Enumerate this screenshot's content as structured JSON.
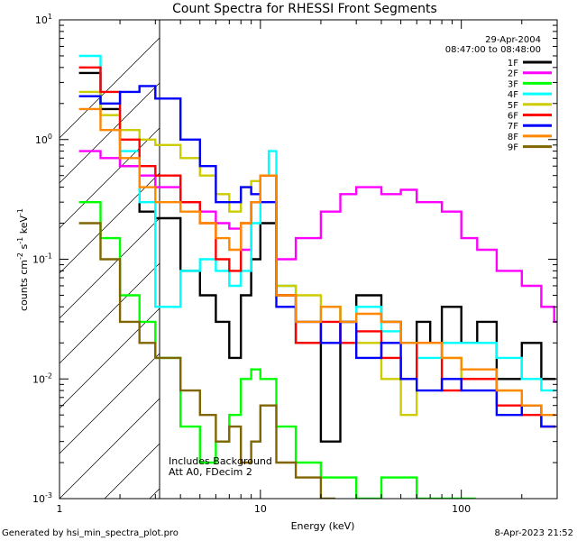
{
  "chart_data": {
    "type": "line",
    "title": "Count Spectra for RHESSI Front Segments",
    "xlabel": "Energy (keV)",
    "ylabel": "counts cm",
    "ylabel_unit_1": "-2",
    "ylabel_unit_2": " s",
    "ylabel_unit_3": "-1",
    "ylabel_unit_4": " keV",
    "ylabel_unit_5": "-1",
    "xscale": "log",
    "yscale": "log",
    "xlim": [
      1,
      300
    ],
    "ylim": [
      0.001,
      10
    ],
    "x_ticks": [
      {
        "v": 1,
        "label": "1"
      },
      {
        "v": 10,
        "label": "10"
      },
      {
        "v": 100,
        "label": "100"
      }
    ],
    "y_ticks": [
      {
        "v": 10,
        "base": "10",
        "exp": "1"
      },
      {
        "v": 1,
        "base": "10",
        "exp": "0"
      },
      {
        "v": 0.1,
        "base": "10",
        "exp": "-1"
      },
      {
        "v": 0.01,
        "base": "10",
        "exp": "-2"
      },
      {
        "v": 0.001,
        "base": "10",
        "exp": "-3"
      }
    ],
    "date": "29-Apr-2004",
    "time_range": "08:47:00 to 08:48:00",
    "annotation_line1": "Includes Background",
    "annotation_line2": "Att A0, FDecim 2",
    "hatched_region_max_energy": 3,
    "footer_left": "Generated by hsi_min_spectra_plot.pro",
    "footer_right": "8-Apr-2023 21:52",
    "series": [
      {
        "name": "1F",
        "color": "#000000",
        "x": [
          1.25,
          1.6,
          2.0,
          2.5,
          3,
          4,
          5,
          6,
          7,
          8,
          9,
          10,
          12,
          15,
          20,
          25,
          30,
          40,
          50,
          60,
          70,
          80,
          100,
          120,
          150,
          200,
          250
        ],
        "values": [
          3.6,
          1.8,
          0.6,
          0.25,
          0.22,
          0.08,
          0.05,
          0.03,
          0.015,
          0.05,
          0.1,
          0.2,
          0.05,
          0.02,
          0.003,
          0.03,
          0.05,
          0.03,
          0.02,
          0.03,
          0.02,
          0.04,
          0.02,
          0.03,
          0.01,
          0.02,
          0.01
        ]
      },
      {
        "name": "2F",
        "color": "#ff00ff",
        "x": [
          1.25,
          1.6,
          2.0,
          2.5,
          3,
          4,
          5,
          6,
          7,
          8,
          9,
          10,
          12,
          15,
          20,
          25,
          30,
          40,
          50,
          60,
          70,
          80,
          100,
          120,
          150,
          200,
          250,
          290
        ],
        "values": [
          0.8,
          0.7,
          0.6,
          0.5,
          0.4,
          0.3,
          0.25,
          0.2,
          0.18,
          0.12,
          0.3,
          0.5,
          0.1,
          0.15,
          0.25,
          0.35,
          0.4,
          0.35,
          0.38,
          0.3,
          0.3,
          0.25,
          0.15,
          0.12,
          0.08,
          0.06,
          0.04,
          0.03
        ]
      },
      {
        "name": "3F",
        "color": "#00ff00",
        "x": [
          1.25,
          1.6,
          2.0,
          2.5,
          3,
          4,
          5,
          6,
          7,
          8,
          9,
          10,
          12,
          15,
          20,
          30,
          40,
          60,
          100
        ],
        "values": [
          0.3,
          0.15,
          0.05,
          0.03,
          0.015,
          0.004,
          0.002,
          0.003,
          0.005,
          0.01,
          0.012,
          0.01,
          0.004,
          0.002,
          0.0015,
          0.001,
          0.0015,
          0.001,
          0.001
        ]
      },
      {
        "name": "4F",
        "color": "#00ffff",
        "x": [
          1.25,
          1.6,
          2.0,
          2.5,
          3,
          4,
          5,
          6,
          7,
          8,
          9,
          10,
          11,
          12,
          15,
          20,
          25,
          30,
          40,
          50,
          60,
          80,
          100,
          150,
          200,
          250
        ],
        "values": [
          5.0,
          2.0,
          0.8,
          0.3,
          0.04,
          0.08,
          0.1,
          0.08,
          0.06,
          0.08,
          0.2,
          0.5,
          0.8,
          0.06,
          0.02,
          0.04,
          0.03,
          0.04,
          0.025,
          0.02,
          0.015,
          0.02,
          0.02,
          0.015,
          0.01,
          0.008
        ]
      },
      {
        "name": "5F",
        "color": "#cccc00",
        "x": [
          1.25,
          1.6,
          2.0,
          2.5,
          3,
          4,
          5,
          6,
          7,
          8,
          9,
          10,
          12,
          15,
          20,
          25,
          30,
          40,
          50,
          60,
          80,
          100,
          150,
          200
        ],
        "values": [
          2.5,
          1.6,
          1.2,
          1.0,
          0.9,
          0.7,
          0.5,
          0.35,
          0.25,
          0.4,
          0.45,
          0.5,
          0.06,
          0.05,
          0.04,
          0.03,
          0.02,
          0.01,
          0.005,
          0.02,
          0.015,
          0.01,
          0.008,
          0.006
        ]
      },
      {
        "name": "6F",
        "color": "#ff0000",
        "x": [
          1.25,
          1.6,
          2.0,
          2.5,
          3,
          4,
          5,
          6,
          7,
          8,
          9,
          10,
          12,
          15,
          20,
          25,
          30,
          40,
          50,
          60,
          80,
          100,
          150,
          200,
          250
        ],
        "values": [
          4.0,
          2.5,
          1.0,
          0.6,
          0.5,
          0.3,
          0.2,
          0.1,
          0.08,
          0.2,
          0.3,
          0.5,
          0.05,
          0.02,
          0.03,
          0.02,
          0.025,
          0.015,
          0.01,
          0.02,
          0.008,
          0.01,
          0.006,
          0.005,
          0.004
        ]
      },
      {
        "name": "7F",
        "color": "#0000ff",
        "x": [
          1.25,
          1.6,
          2.0,
          2.5,
          3,
          4,
          5,
          6,
          7,
          8,
          9,
          10,
          12,
          15,
          20,
          25,
          30,
          40,
          50,
          60,
          80,
          100,
          150,
          200,
          250
        ],
        "values": [
          2.3,
          2.0,
          2.5,
          2.8,
          2.2,
          1.0,
          0.6,
          0.3,
          0.3,
          0.4,
          0.35,
          0.3,
          0.04,
          0.03,
          0.02,
          0.03,
          0.015,
          0.02,
          0.01,
          0.008,
          0.01,
          0.008,
          0.005,
          0.006,
          0.004
        ]
      },
      {
        "name": "8F",
        "color": "#ff8800",
        "x": [
          1.25,
          1.6,
          2.0,
          2.5,
          3,
          4,
          5,
          6,
          7,
          8,
          9,
          10,
          12,
          15,
          20,
          25,
          30,
          40,
          50,
          60,
          80,
          100,
          150,
          200,
          250
        ],
        "values": [
          1.8,
          1.2,
          0.7,
          0.4,
          0.3,
          0.25,
          0.2,
          0.15,
          0.12,
          0.2,
          0.3,
          0.5,
          0.05,
          0.03,
          0.04,
          0.03,
          0.035,
          0.03,
          0.02,
          0.02,
          0.015,
          0.012,
          0.008,
          0.006,
          0.005
        ]
      },
      {
        "name": "9F",
        "color": "#806600",
        "x": [
          1.25,
          1.6,
          2.0,
          2.5,
          3,
          4,
          5,
          6,
          7,
          8,
          9,
          10,
          12,
          15,
          20
        ],
        "values": [
          0.2,
          0.1,
          0.03,
          0.02,
          0.015,
          0.008,
          0.005,
          0.003,
          0.004,
          0.002,
          0.003,
          0.006,
          0.002,
          0.0015,
          0.001
        ]
      }
    ]
  }
}
